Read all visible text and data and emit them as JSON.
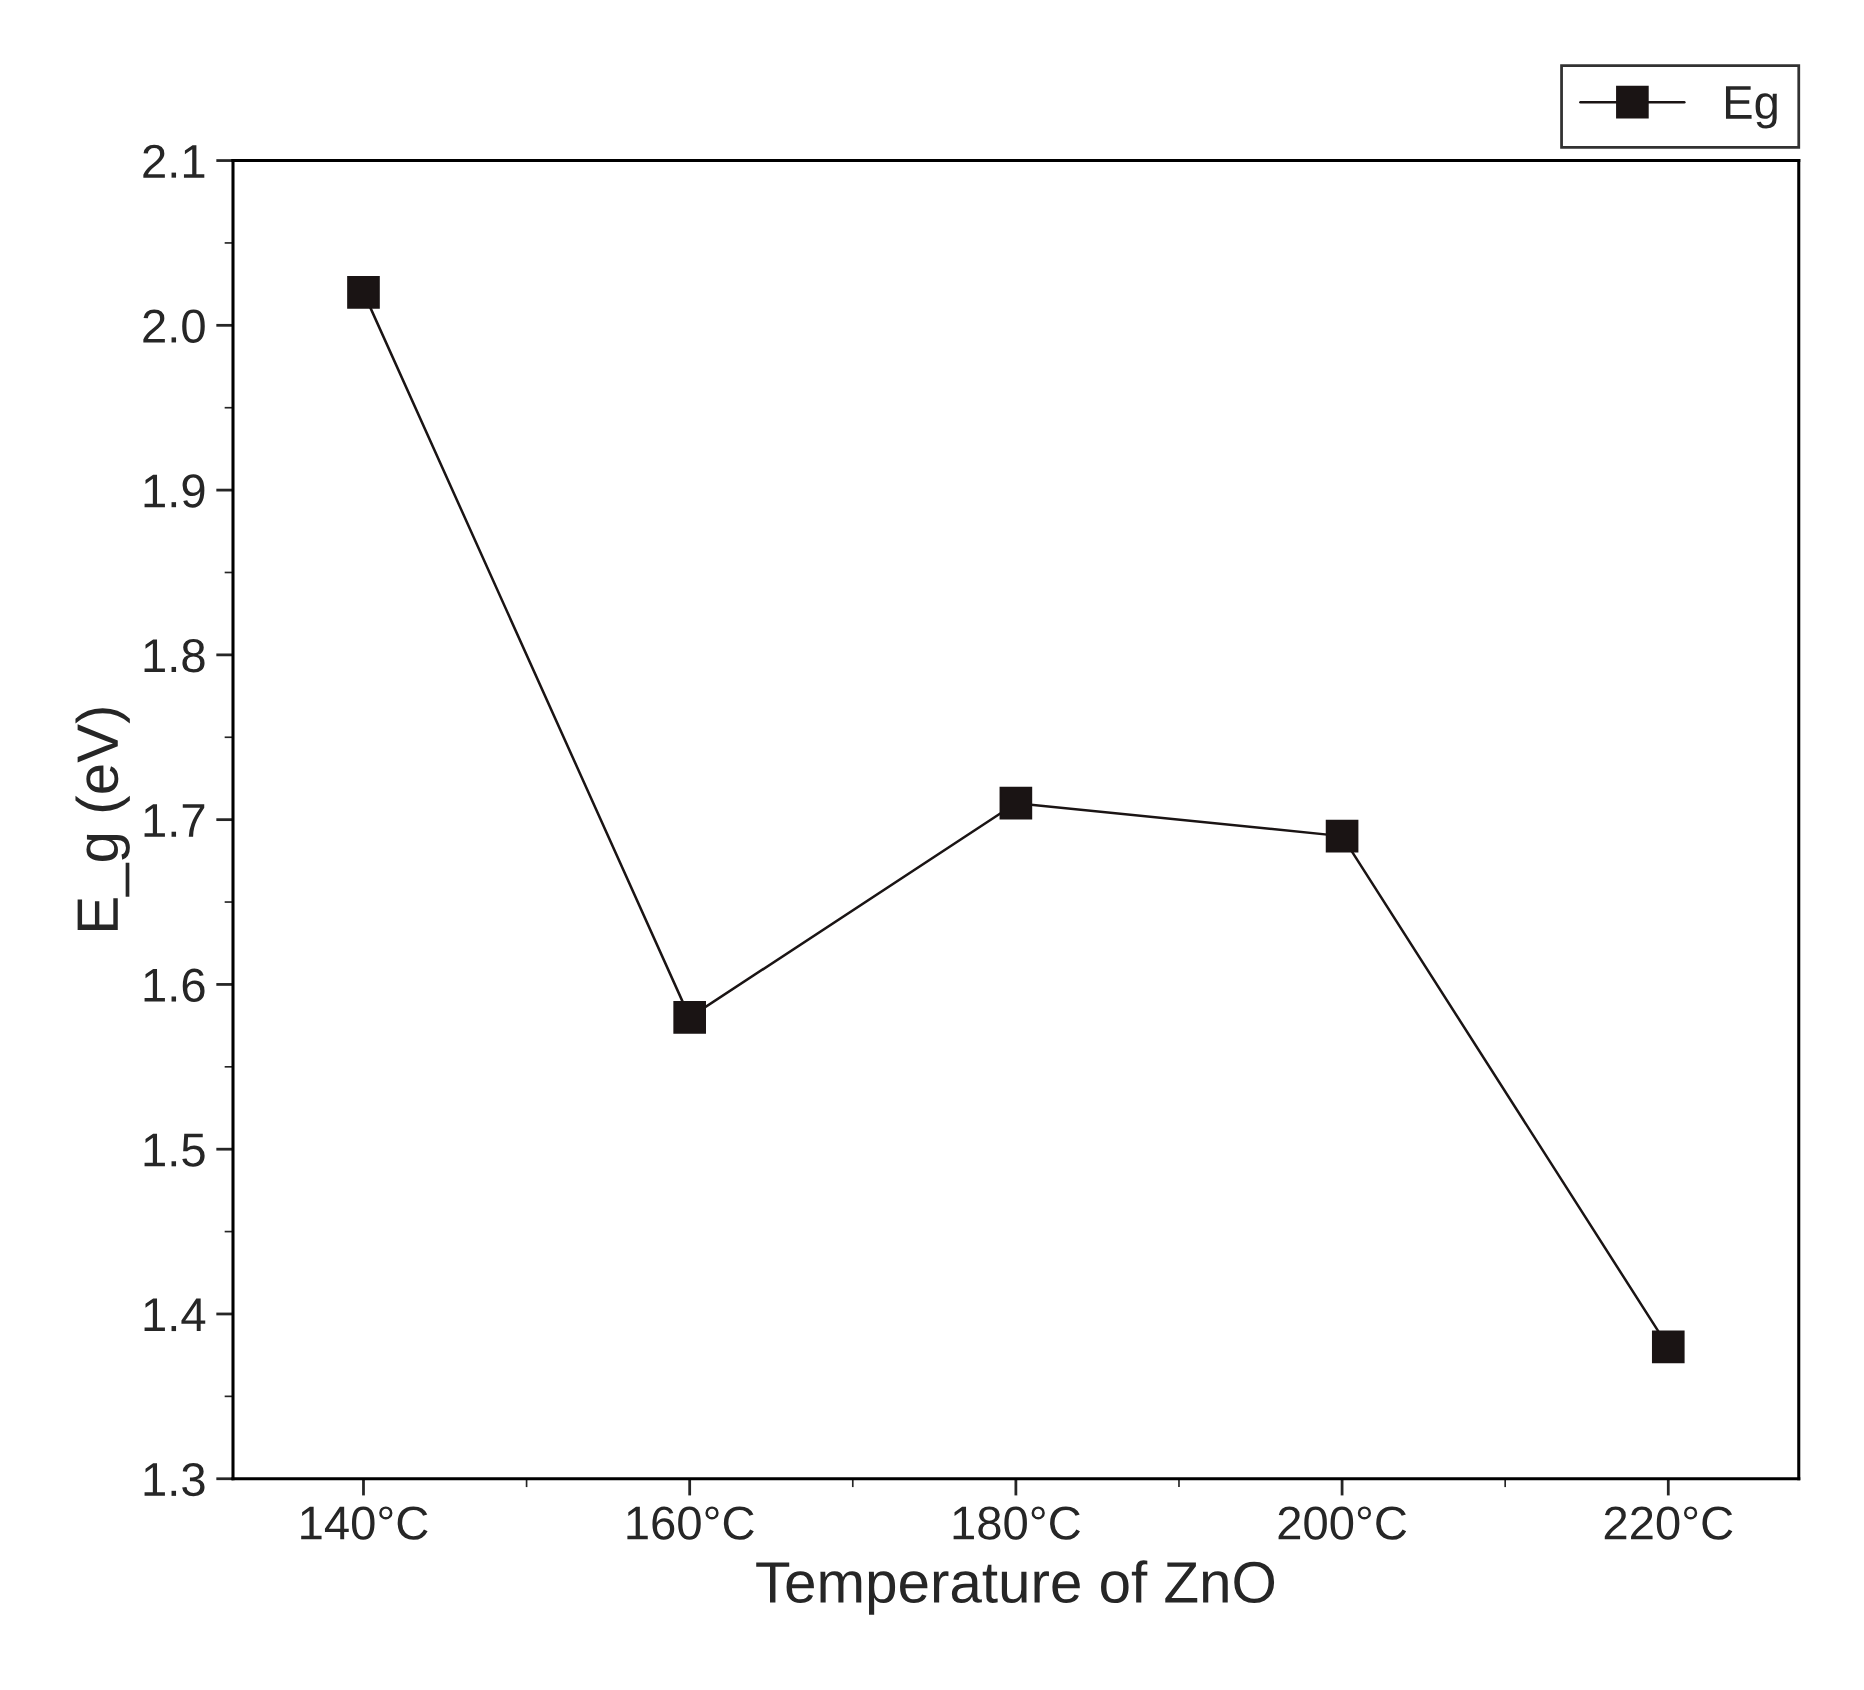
{
  "chart_data": {
    "type": "line",
    "xlabel": "Temperature of ZnO",
    "ylabel": "E_g (eV)",
    "categories": [
      "140°C",
      "160°C",
      "180°C",
      "200°C",
      "220°C"
    ],
    "series": [
      {
        "name": "Eg",
        "color": "#1a1414",
        "values": [
          2.02,
          1.58,
          1.71,
          1.69,
          1.38
        ]
      }
    ],
    "ylim": [
      1.3,
      2.1
    ],
    "yticks": [
      1.3,
      1.4,
      1.5,
      1.6,
      1.7,
      1.8,
      1.9,
      {
        "value": 2,
        "label": "2.0"
      },
      2.1
    ],
    "marker": "square",
    "line_style": "solid",
    "legend": "top right",
    "grid": false
  }
}
